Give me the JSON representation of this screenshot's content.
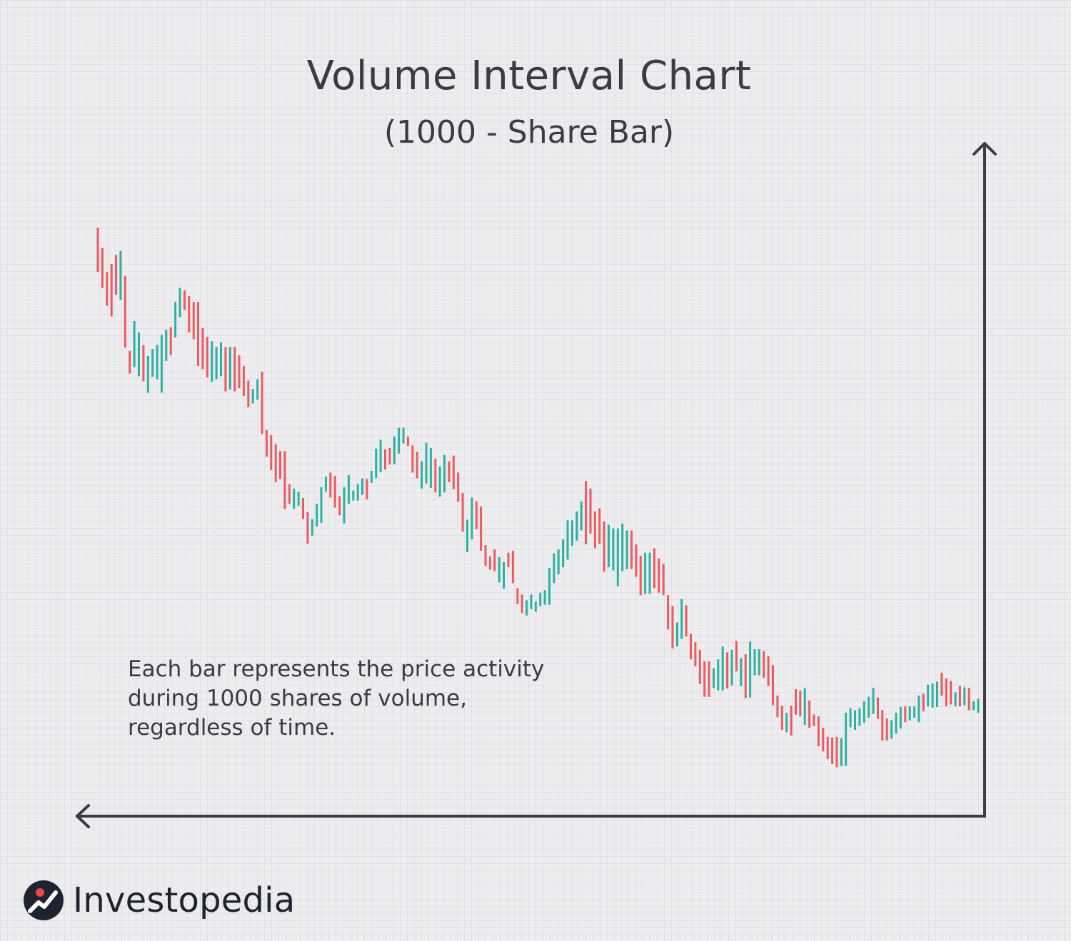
{
  "chart_data": {
    "type": "ohlc",
    "title": "Volume Interval Chart",
    "subtitle": "(1000 - Share Bar)",
    "annotation": [
      "Each bar represents the price activity",
      "during 1000 shares of volume,",
      "regardless of time."
    ],
    "xlabel": "",
    "ylabel": "",
    "grid": true,
    "colors": {
      "up": "#2bb1a0",
      "down": "#ec5a5f",
      "axis": "#3b3b40"
    },
    "ylim": [
      0,
      100
    ],
    "bars": [
      {
        "h": 90.0,
        "l": 83.0,
        "d": "down"
      },
      {
        "h": 86.8,
        "l": 80.5,
        "d": "down"
      },
      {
        "h": 83.0,
        "l": 77.7,
        "d": "down"
      },
      {
        "h": 84.3,
        "l": 76.0,
        "d": "down"
      },
      {
        "h": 85.7,
        "l": 79.4,
        "d": "down"
      },
      {
        "h": 86.3,
        "l": 78.6,
        "d": "up"
      },
      {
        "h": 82.4,
        "l": 71.1,
        "d": "down"
      },
      {
        "h": 70.6,
        "l": 67.0,
        "d": "down"
      },
      {
        "h": 75.3,
        "l": 68.0,
        "d": "up"
      },
      {
        "h": 73.5,
        "l": 66.6,
        "d": "up"
      },
      {
        "h": 71.5,
        "l": 65.8,
        "d": "down"
      },
      {
        "h": 69.8,
        "l": 64.0,
        "d": "up"
      },
      {
        "h": 70.9,
        "l": 66.5,
        "d": "up"
      },
      {
        "h": 71.5,
        "l": 66.1,
        "d": "up"
      },
      {
        "h": 73.1,
        "l": 64.0,
        "d": "up"
      },
      {
        "h": 73.9,
        "l": 69.0,
        "d": "up"
      },
      {
        "h": 74.3,
        "l": 69.9,
        "d": "down"
      },
      {
        "h": 78.3,
        "l": 72.7,
        "d": "up"
      },
      {
        "h": 80.5,
        "l": 75.9,
        "d": "up"
      },
      {
        "h": 80.1,
        "l": 77.0,
        "d": "down"
      },
      {
        "h": 79.2,
        "l": 73.5,
        "d": "down"
      },
      {
        "h": 78.3,
        "l": 72.4,
        "d": "down"
      },
      {
        "h": 78.3,
        "l": 68.2,
        "d": "down"
      },
      {
        "h": 74.2,
        "l": 67.7,
        "d": "down"
      },
      {
        "h": 72.8,
        "l": 66.4,
        "d": "down"
      },
      {
        "h": 72.1,
        "l": 65.7,
        "d": "up"
      },
      {
        "h": 71.2,
        "l": 66.1,
        "d": "up"
      },
      {
        "h": 71.9,
        "l": 66.6,
        "d": "up"
      },
      {
        "h": 71.2,
        "l": 64.2,
        "d": "down"
      },
      {
        "h": 71.2,
        "l": 64.5,
        "d": "up"
      },
      {
        "h": 71.2,
        "l": 64.2,
        "d": "down"
      },
      {
        "h": 69.9,
        "l": 64.7,
        "d": "down"
      },
      {
        "h": 68.2,
        "l": 63.5,
        "d": "down"
      },
      {
        "h": 65.9,
        "l": 61.7,
        "d": "down"
      },
      {
        "h": 64.6,
        "l": 62.3,
        "d": "up"
      },
      {
        "h": 66.1,
        "l": 62.9,
        "d": "up"
      },
      {
        "h": 67.3,
        "l": 57.5,
        "d": "down"
      },
      {
        "h": 58.1,
        "l": 53.9,
        "d": "down"
      },
      {
        "h": 57.3,
        "l": 51.8,
        "d": "down"
      },
      {
        "h": 55.9,
        "l": 49.9,
        "d": "down"
      },
      {
        "h": 54.8,
        "l": 50.4,
        "d": "down"
      },
      {
        "h": 54.8,
        "l": 45.7,
        "d": "down"
      },
      {
        "h": 49.6,
        "l": 46.5,
        "d": "down"
      },
      {
        "h": 48.9,
        "l": 45.7,
        "d": "up"
      },
      {
        "h": 48.4,
        "l": 46.2,
        "d": "up"
      },
      {
        "h": 47.4,
        "l": 44.1,
        "d": "down"
      },
      {
        "h": 45.2,
        "l": 40.2,
        "d": "down"
      },
      {
        "h": 44.1,
        "l": 41.5,
        "d": "up"
      },
      {
        "h": 46.5,
        "l": 42.9,
        "d": "up"
      },
      {
        "h": 49.1,
        "l": 43.5,
        "d": "up"
      },
      {
        "h": 50.8,
        "l": 48.4,
        "d": "up"
      },
      {
        "h": 51.4,
        "l": 47.5,
        "d": "down"
      },
      {
        "h": 50.9,
        "l": 45.9,
        "d": "down"
      },
      {
        "h": 47.7,
        "l": 44.7,
        "d": "down"
      },
      {
        "h": 49.1,
        "l": 43.4,
        "d": "up"
      },
      {
        "h": 51.0,
        "l": 46.5,
        "d": "up"
      },
      {
        "h": 48.6,
        "l": 47.0,
        "d": "up"
      },
      {
        "h": 49.6,
        "l": 47.0,
        "d": "up"
      },
      {
        "h": 50.5,
        "l": 47.9,
        "d": "up"
      },
      {
        "h": 50.4,
        "l": 47.2,
        "d": "down"
      },
      {
        "h": 51.7,
        "l": 49.8,
        "d": "up"
      },
      {
        "h": 55.2,
        "l": 50.5,
        "d": "up"
      },
      {
        "h": 56.6,
        "l": 51.5,
        "d": "up"
      },
      {
        "h": 55.1,
        "l": 51.9,
        "d": "down"
      },
      {
        "h": 55.3,
        "l": 52.7,
        "d": "down"
      },
      {
        "h": 57.1,
        "l": 52.7,
        "d": "up"
      },
      {
        "h": 58.5,
        "l": 54.4,
        "d": "up"
      },
      {
        "h": 58.5,
        "l": 56.0,
        "d": "up"
      },
      {
        "h": 57.1,
        "l": 55.6,
        "d": "down"
      },
      {
        "h": 55.7,
        "l": 51.4,
        "d": "down"
      },
      {
        "h": 54.7,
        "l": 50.5,
        "d": "down"
      },
      {
        "h": 53.2,
        "l": 48.9,
        "d": "up"
      },
      {
        "h": 56.1,
        "l": 49.7,
        "d": "up"
      },
      {
        "h": 55.3,
        "l": 49.0,
        "d": "up"
      },
      {
        "h": 53.6,
        "l": 48.3,
        "d": "down"
      },
      {
        "h": 52.4,
        "l": 47.6,
        "d": "up"
      },
      {
        "h": 54.2,
        "l": 48.3,
        "d": "up"
      },
      {
        "h": 53.2,
        "l": 49.9,
        "d": "down"
      },
      {
        "h": 54.1,
        "l": 48.8,
        "d": "down"
      },
      {
        "h": 51.4,
        "l": 46.8,
        "d": "down"
      },
      {
        "h": 48.2,
        "l": 42.1,
        "d": "down"
      },
      {
        "h": 44.0,
        "l": 38.9,
        "d": "up"
      },
      {
        "h": 47.5,
        "l": 40.9,
        "d": "up"
      },
      {
        "h": 46.9,
        "l": 42.5,
        "d": "down"
      },
      {
        "h": 46.1,
        "l": 39.1,
        "d": "down"
      },
      {
        "h": 40.0,
        "l": 36.7,
        "d": "down"
      },
      {
        "h": 38.2,
        "l": 36.1,
        "d": "down"
      },
      {
        "h": 39.3,
        "l": 35.9,
        "d": "down"
      },
      {
        "h": 38.1,
        "l": 34.1,
        "d": "up"
      },
      {
        "h": 37.3,
        "l": 33.1,
        "d": "up"
      },
      {
        "h": 38.8,
        "l": 36.5,
        "d": "down"
      },
      {
        "h": 39.1,
        "l": 34.0,
        "d": "down"
      },
      {
        "h": 33.2,
        "l": 30.7,
        "d": "down"
      },
      {
        "h": 32.2,
        "l": 29.3,
        "d": "down"
      },
      {
        "h": 31.3,
        "l": 28.9,
        "d": "up"
      },
      {
        "h": 32.2,
        "l": 29.9,
        "d": "up"
      },
      {
        "h": 31.1,
        "l": 29.5,
        "d": "up"
      },
      {
        "h": 32.5,
        "l": 30.4,
        "d": "up"
      },
      {
        "h": 32.9,
        "l": 30.6,
        "d": "up"
      },
      {
        "h": 36.4,
        "l": 30.6,
        "d": "up"
      },
      {
        "h": 38.7,
        "l": 34.0,
        "d": "up"
      },
      {
        "h": 39.3,
        "l": 35.4,
        "d": "up"
      },
      {
        "h": 40.9,
        "l": 36.5,
        "d": "up"
      },
      {
        "h": 43.9,
        "l": 37.7,
        "d": "up"
      },
      {
        "h": 43.9,
        "l": 39.9,
        "d": "up"
      },
      {
        "h": 45.3,
        "l": 40.7,
        "d": "up"
      },
      {
        "h": 46.9,
        "l": 42.3,
        "d": "up"
      },
      {
        "h": 50.1,
        "l": 40.1,
        "d": "down"
      },
      {
        "h": 48.9,
        "l": 41.8,
        "d": "down"
      },
      {
        "h": 45.3,
        "l": 39.5,
        "d": "down"
      },
      {
        "h": 45.8,
        "l": 40.2,
        "d": "down"
      },
      {
        "h": 43.7,
        "l": 35.8,
        "d": "down"
      },
      {
        "h": 43.2,
        "l": 36.5,
        "d": "up"
      },
      {
        "h": 42.6,
        "l": 36.0,
        "d": "up"
      },
      {
        "h": 42.6,
        "l": 33.5,
        "d": "up"
      },
      {
        "h": 43.4,
        "l": 35.9,
        "d": "up"
      },
      {
        "h": 42.3,
        "l": 36.2,
        "d": "up"
      },
      {
        "h": 42.3,
        "l": 36.2,
        "d": "down"
      },
      {
        "h": 40.1,
        "l": 35.0,
        "d": "down"
      },
      {
        "h": 38.3,
        "l": 32.1,
        "d": "down"
      },
      {
        "h": 38.8,
        "l": 32.3,
        "d": "up"
      },
      {
        "h": 38.8,
        "l": 32.3,
        "d": "up"
      },
      {
        "h": 39.5,
        "l": 33.2,
        "d": "down"
      },
      {
        "h": 37.9,
        "l": 32.5,
        "d": "down"
      },
      {
        "h": 37.0,
        "l": 32.1,
        "d": "down"
      },
      {
        "h": 32.1,
        "l": 26.7,
        "d": "down"
      },
      {
        "h": 30.4,
        "l": 23.7,
        "d": "down"
      },
      {
        "h": 27.8,
        "l": 24.0,
        "d": "up"
      },
      {
        "h": 31.5,
        "l": 25.2,
        "d": "up"
      },
      {
        "h": 30.5,
        "l": 25.6,
        "d": "down"
      },
      {
        "h": 26.0,
        "l": 22.0,
        "d": "down"
      },
      {
        "h": 24.7,
        "l": 20.9,
        "d": "down"
      },
      {
        "h": 23.5,
        "l": 18.1,
        "d": "down"
      },
      {
        "h": 21.7,
        "l": 16.1,
        "d": "down"
      },
      {
        "h": 21.7,
        "l": 16.1,
        "d": "down"
      },
      {
        "h": 20.6,
        "l": 17.5,
        "d": "up"
      },
      {
        "h": 22.0,
        "l": 17.1,
        "d": "up"
      },
      {
        "h": 24.0,
        "l": 17.1,
        "d": "up"
      },
      {
        "h": 23.1,
        "l": 17.4,
        "d": "down"
      },
      {
        "h": 23.5,
        "l": 17.9,
        "d": "up"
      },
      {
        "h": 24.9,
        "l": 20.1,
        "d": "down"
      },
      {
        "h": 22.2,
        "l": 17.8,
        "d": "up"
      },
      {
        "h": 22.8,
        "l": 15.9,
        "d": "down"
      },
      {
        "h": 24.8,
        "l": 16.0,
        "d": "up"
      },
      {
        "h": 23.6,
        "l": 19.5,
        "d": "up"
      },
      {
        "h": 23.6,
        "l": 19.5,
        "d": "up"
      },
      {
        "h": 23.3,
        "l": 19.1,
        "d": "down"
      },
      {
        "h": 22.5,
        "l": 17.8,
        "d": "down"
      },
      {
        "h": 21.1,
        "l": 14.8,
        "d": "down"
      },
      {
        "h": 16.3,
        "l": 12.9,
        "d": "down"
      },
      {
        "h": 14.7,
        "l": 10.9,
        "d": "down"
      },
      {
        "h": 13.6,
        "l": 10.5,
        "d": "up"
      },
      {
        "h": 14.7,
        "l": 10.0,
        "d": "down"
      },
      {
        "h": 17.3,
        "l": 13.3,
        "d": "down"
      },
      {
        "h": 17.1,
        "l": 13.0,
        "d": "down"
      },
      {
        "h": 17.5,
        "l": 11.7,
        "d": "up"
      },
      {
        "h": 15.5,
        "l": 11.2,
        "d": "down"
      },
      {
        "h": 13.3,
        "l": 11.5,
        "d": "down"
      },
      {
        "h": 13.0,
        "l": 8.3,
        "d": "down"
      },
      {
        "h": 11.2,
        "l": 7.5,
        "d": "down"
      },
      {
        "h": 9.8,
        "l": 6.3,
        "d": "down"
      },
      {
        "h": 9.7,
        "l": 5.5,
        "d": "down"
      },
      {
        "h": 9.8,
        "l": 5.0,
        "d": "down"
      },
      {
        "h": 9.6,
        "l": 5.2,
        "d": "up"
      },
      {
        "h": 13.6,
        "l": 5.2,
        "d": "up"
      },
      {
        "h": 14.3,
        "l": 11.3,
        "d": "up"
      },
      {
        "h": 14.0,
        "l": 10.9,
        "d": "up"
      },
      {
        "h": 14.3,
        "l": 11.5,
        "d": "up"
      },
      {
        "h": 15.4,
        "l": 12.0,
        "d": "up"
      },
      {
        "h": 16.1,
        "l": 12.8,
        "d": "up"
      },
      {
        "h": 17.5,
        "l": 13.4,
        "d": "up"
      },
      {
        "h": 16.0,
        "l": 12.6,
        "d": "down"
      },
      {
        "h": 14.0,
        "l": 9.2,
        "d": "down"
      },
      {
        "h": 12.7,
        "l": 9.2,
        "d": "down"
      },
      {
        "h": 12.4,
        "l": 9.5,
        "d": "up"
      },
      {
        "h": 13.6,
        "l": 10.3,
        "d": "up"
      },
      {
        "h": 14.5,
        "l": 11.1,
        "d": "up"
      },
      {
        "h": 14.6,
        "l": 12.1,
        "d": "down"
      },
      {
        "h": 14.6,
        "l": 12.4,
        "d": "up"
      },
      {
        "h": 14.6,
        "l": 12.8,
        "d": "up"
      },
      {
        "h": 16.3,
        "l": 12.1,
        "d": "up"
      },
      {
        "h": 16.6,
        "l": 13.8,
        "d": "down"
      },
      {
        "h": 18.0,
        "l": 14.6,
        "d": "up"
      },
      {
        "h": 18.2,
        "l": 14.4,
        "d": "up"
      },
      {
        "h": 18.5,
        "l": 14.5,
        "d": "up"
      },
      {
        "h": 19.9,
        "l": 16.3,
        "d": "down"
      },
      {
        "h": 19.0,
        "l": 14.6,
        "d": "down"
      },
      {
        "h": 18.6,
        "l": 14.9,
        "d": "down"
      },
      {
        "h": 16.8,
        "l": 14.6,
        "d": "up"
      },
      {
        "h": 17.8,
        "l": 14.6,
        "d": "down"
      },
      {
        "h": 17.6,
        "l": 14.8,
        "d": "up"
      },
      {
        "h": 17.5,
        "l": 14.0,
        "d": "down"
      },
      {
        "h": 15.4,
        "l": 14.0,
        "d": "up"
      },
      {
        "h": 15.8,
        "l": 13.6,
        "d": "up"
      }
    ]
  },
  "brand": {
    "name": "Investopedia"
  }
}
